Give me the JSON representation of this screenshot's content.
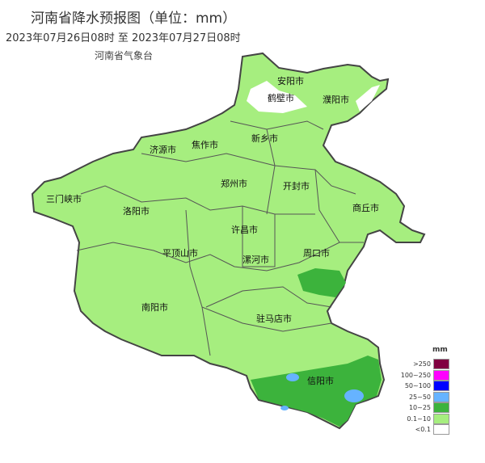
{
  "header": {
    "title": "河南省降水预报图（单位：mm）",
    "period": "2023年07月26日08时  至  2023年07月27日08时",
    "issuer": "河南省气象台"
  },
  "cities": [
    "安阳市",
    "鹤壁市",
    "濮阳市",
    "新乡市",
    "济源市",
    "焦作市",
    "三门峡市",
    "郑州市",
    "开封市",
    "洛阳市",
    "商丘市",
    "许昌市",
    "平顶山市",
    "漯河市",
    "周口市",
    "南阳市",
    "驻马店市",
    "信阳市"
  ],
  "legend": {
    "unit": "mm",
    "items": [
      {
        "label": ">250",
        "color": "#800040"
      },
      {
        "label": "100~250",
        "color": "#ff00ff"
      },
      {
        "label": "50~100",
        "color": "#0000ff"
      },
      {
        "label": "25~50",
        "color": "#66b3ff"
      },
      {
        "label": "10~25",
        "color": "#3cb33c"
      },
      {
        "label": "0.1~10",
        "color": "#a6ee7f"
      },
      {
        "label": "<0.1",
        "color": "#ffffff"
      }
    ]
  }
}
